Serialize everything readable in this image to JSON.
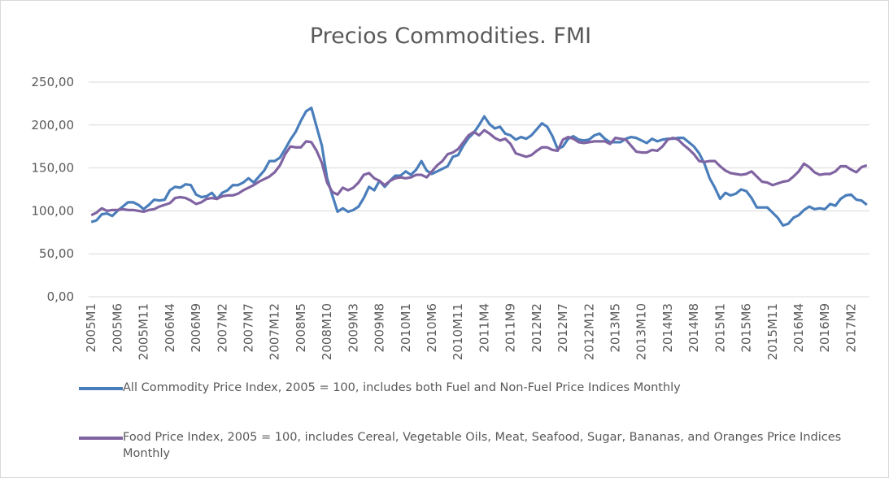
{
  "chart_data": {
    "type": "line",
    "title": "Precios Commodities. FMI",
    "categories": [
      "2005M1",
      null,
      null,
      null,
      null,
      "2005M6",
      null,
      null,
      null,
      null,
      "2005M11",
      null,
      null,
      null,
      null,
      "2006M4",
      null,
      null,
      null,
      null,
      "2006M9",
      null,
      null,
      null,
      null,
      "2007M2",
      null,
      null,
      null,
      null,
      "2007M7",
      null,
      null,
      null,
      null,
      "2007M12",
      null,
      null,
      null,
      null,
      "2008M5",
      null,
      null,
      null,
      null,
      "2008M10",
      null,
      null,
      null,
      null,
      "2009M3",
      null,
      null,
      null,
      null,
      "2009M8",
      null,
      null,
      null,
      null,
      "2010M1",
      null,
      null,
      null,
      null,
      "2010M6",
      null,
      null,
      null,
      null,
      "2010M11",
      null,
      null,
      null,
      null,
      "2011M4",
      null,
      null,
      null,
      null,
      "2011M9",
      null,
      null,
      null,
      null,
      "2012M2",
      null,
      null,
      null,
      null,
      "2012M7",
      null,
      null,
      null,
      null,
      "2012M12",
      null,
      null,
      null,
      null,
      "2013M5",
      null,
      null,
      null,
      null,
      "2013M10",
      null,
      null,
      null,
      null,
      "2014M3",
      null,
      null,
      null,
      null,
      "2014M8",
      null,
      null,
      null,
      null,
      "2015M1",
      null,
      null,
      null,
      null,
      "2015M6",
      null,
      null,
      null,
      null,
      "2015M11",
      null,
      null,
      null,
      null,
      "2016M4",
      null,
      null,
      null,
      null,
      "2016M9",
      null,
      null,
      null,
      null,
      "2017M2",
      null,
      null,
      null
    ],
    "series": [
      {
        "name": "All Commodity Price Index, 2005 = 100, includes both Fuel and Non-Fuel Price Indices Monthly",
        "color": "#4a7ebb",
        "values": [
          87,
          89,
          96,
          97,
          94,
          100,
          105,
          110,
          110,
          107,
          102,
          107,
          113,
          112,
          113,
          124,
          128,
          127,
          131,
          130,
          119,
          116,
          117,
          121,
          114,
          121,
          124,
          130,
          130,
          133,
          138,
          133,
          140,
          147,
          158,
          158,
          162,
          172,
          183,
          192,
          205,
          216,
          220,
          198,
          176,
          138,
          118,
          99,
          103,
          99,
          101,
          105,
          115,
          128,
          124,
          135,
          128,
          135,
          141,
          141,
          146,
          142,
          148,
          158,
          147,
          143,
          146,
          149,
          152,
          163,
          165,
          176,
          185,
          191,
          200,
          210,
          201,
          196,
          198,
          190,
          188,
          183,
          186,
          184,
          188,
          195,
          202,
          198,
          187,
          172,
          175,
          184,
          187,
          183,
          182,
          183,
          188,
          190,
          184,
          180,
          180,
          180,
          184,
          186,
          185,
          182,
          179,
          184,
          181,
          183,
          184,
          184,
          185,
          185,
          180,
          175,
          167,
          155,
          138,
          127,
          114,
          121,
          118,
          120,
          125,
          123,
          115,
          104,
          104,
          104,
          98,
          92,
          83,
          85,
          92,
          95,
          101,
          105,
          102,
          103,
          102,
          108,
          106,
          114,
          118,
          119,
          113,
          112,
          107
        ]
      },
      {
        "name": "Food Price Index, 2005 = 100, includes Cereal, Vegetable Oils, Meat, Seafood, Sugar, Bananas, and Oranges Price Indices Monthly",
        "color": "#8064a2",
        "values": [
          95,
          98,
          103,
          100,
          101,
          101,
          102,
          101,
          101,
          100,
          99,
          101,
          102,
          105,
          107,
          109,
          115,
          116,
          115,
          112,
          108,
          110,
          114,
          115,
          114,
          117,
          118,
          118,
          120,
          124,
          127,
          130,
          134,
          137,
          140,
          145,
          153,
          166,
          175,
          174,
          174,
          181,
          180,
          170,
          156,
          133,
          122,
          119,
          127,
          124,
          127,
          133,
          142,
          144,
          138,
          135,
          130,
          135,
          138,
          139,
          138,
          139,
          142,
          142,
          139,
          146,
          153,
          158,
          166,
          168,
          172,
          180,
          188,
          192,
          188,
          194,
          190,
          185,
          182,
          184,
          178,
          167,
          165,
          163,
          165,
          170,
          174,
          174,
          171,
          170,
          183,
          186,
          184,
          180,
          179,
          180,
          181,
          181,
          181,
          178,
          185,
          184,
          183,
          176,
          169,
          168,
          168,
          171,
          170,
          175,
          183,
          185,
          183,
          177,
          172,
          166,
          158,
          157,
          158,
          158,
          152,
          147,
          144,
          143,
          142,
          143,
          146,
          140,
          134,
          133,
          130,
          132,
          134,
          135,
          140,
          146,
          155,
          151,
          145,
          142,
          143,
          143,
          146,
          152,
          152,
          148,
          145,
          151,
          153
        ]
      }
    ],
    "ylim": [
      0,
      250
    ],
    "yticks": [
      {
        "value": 0,
        "label": "0,00"
      },
      {
        "value": 50,
        "label": "50,00"
      },
      {
        "value": 100,
        "label": "100,00"
      },
      {
        "value": 150,
        "label": "150,00"
      },
      {
        "value": 200,
        "label": "200,00"
      },
      {
        "value": 250,
        "label": "250,00"
      }
    ],
    "grid": true,
    "legend": "bottom"
  }
}
